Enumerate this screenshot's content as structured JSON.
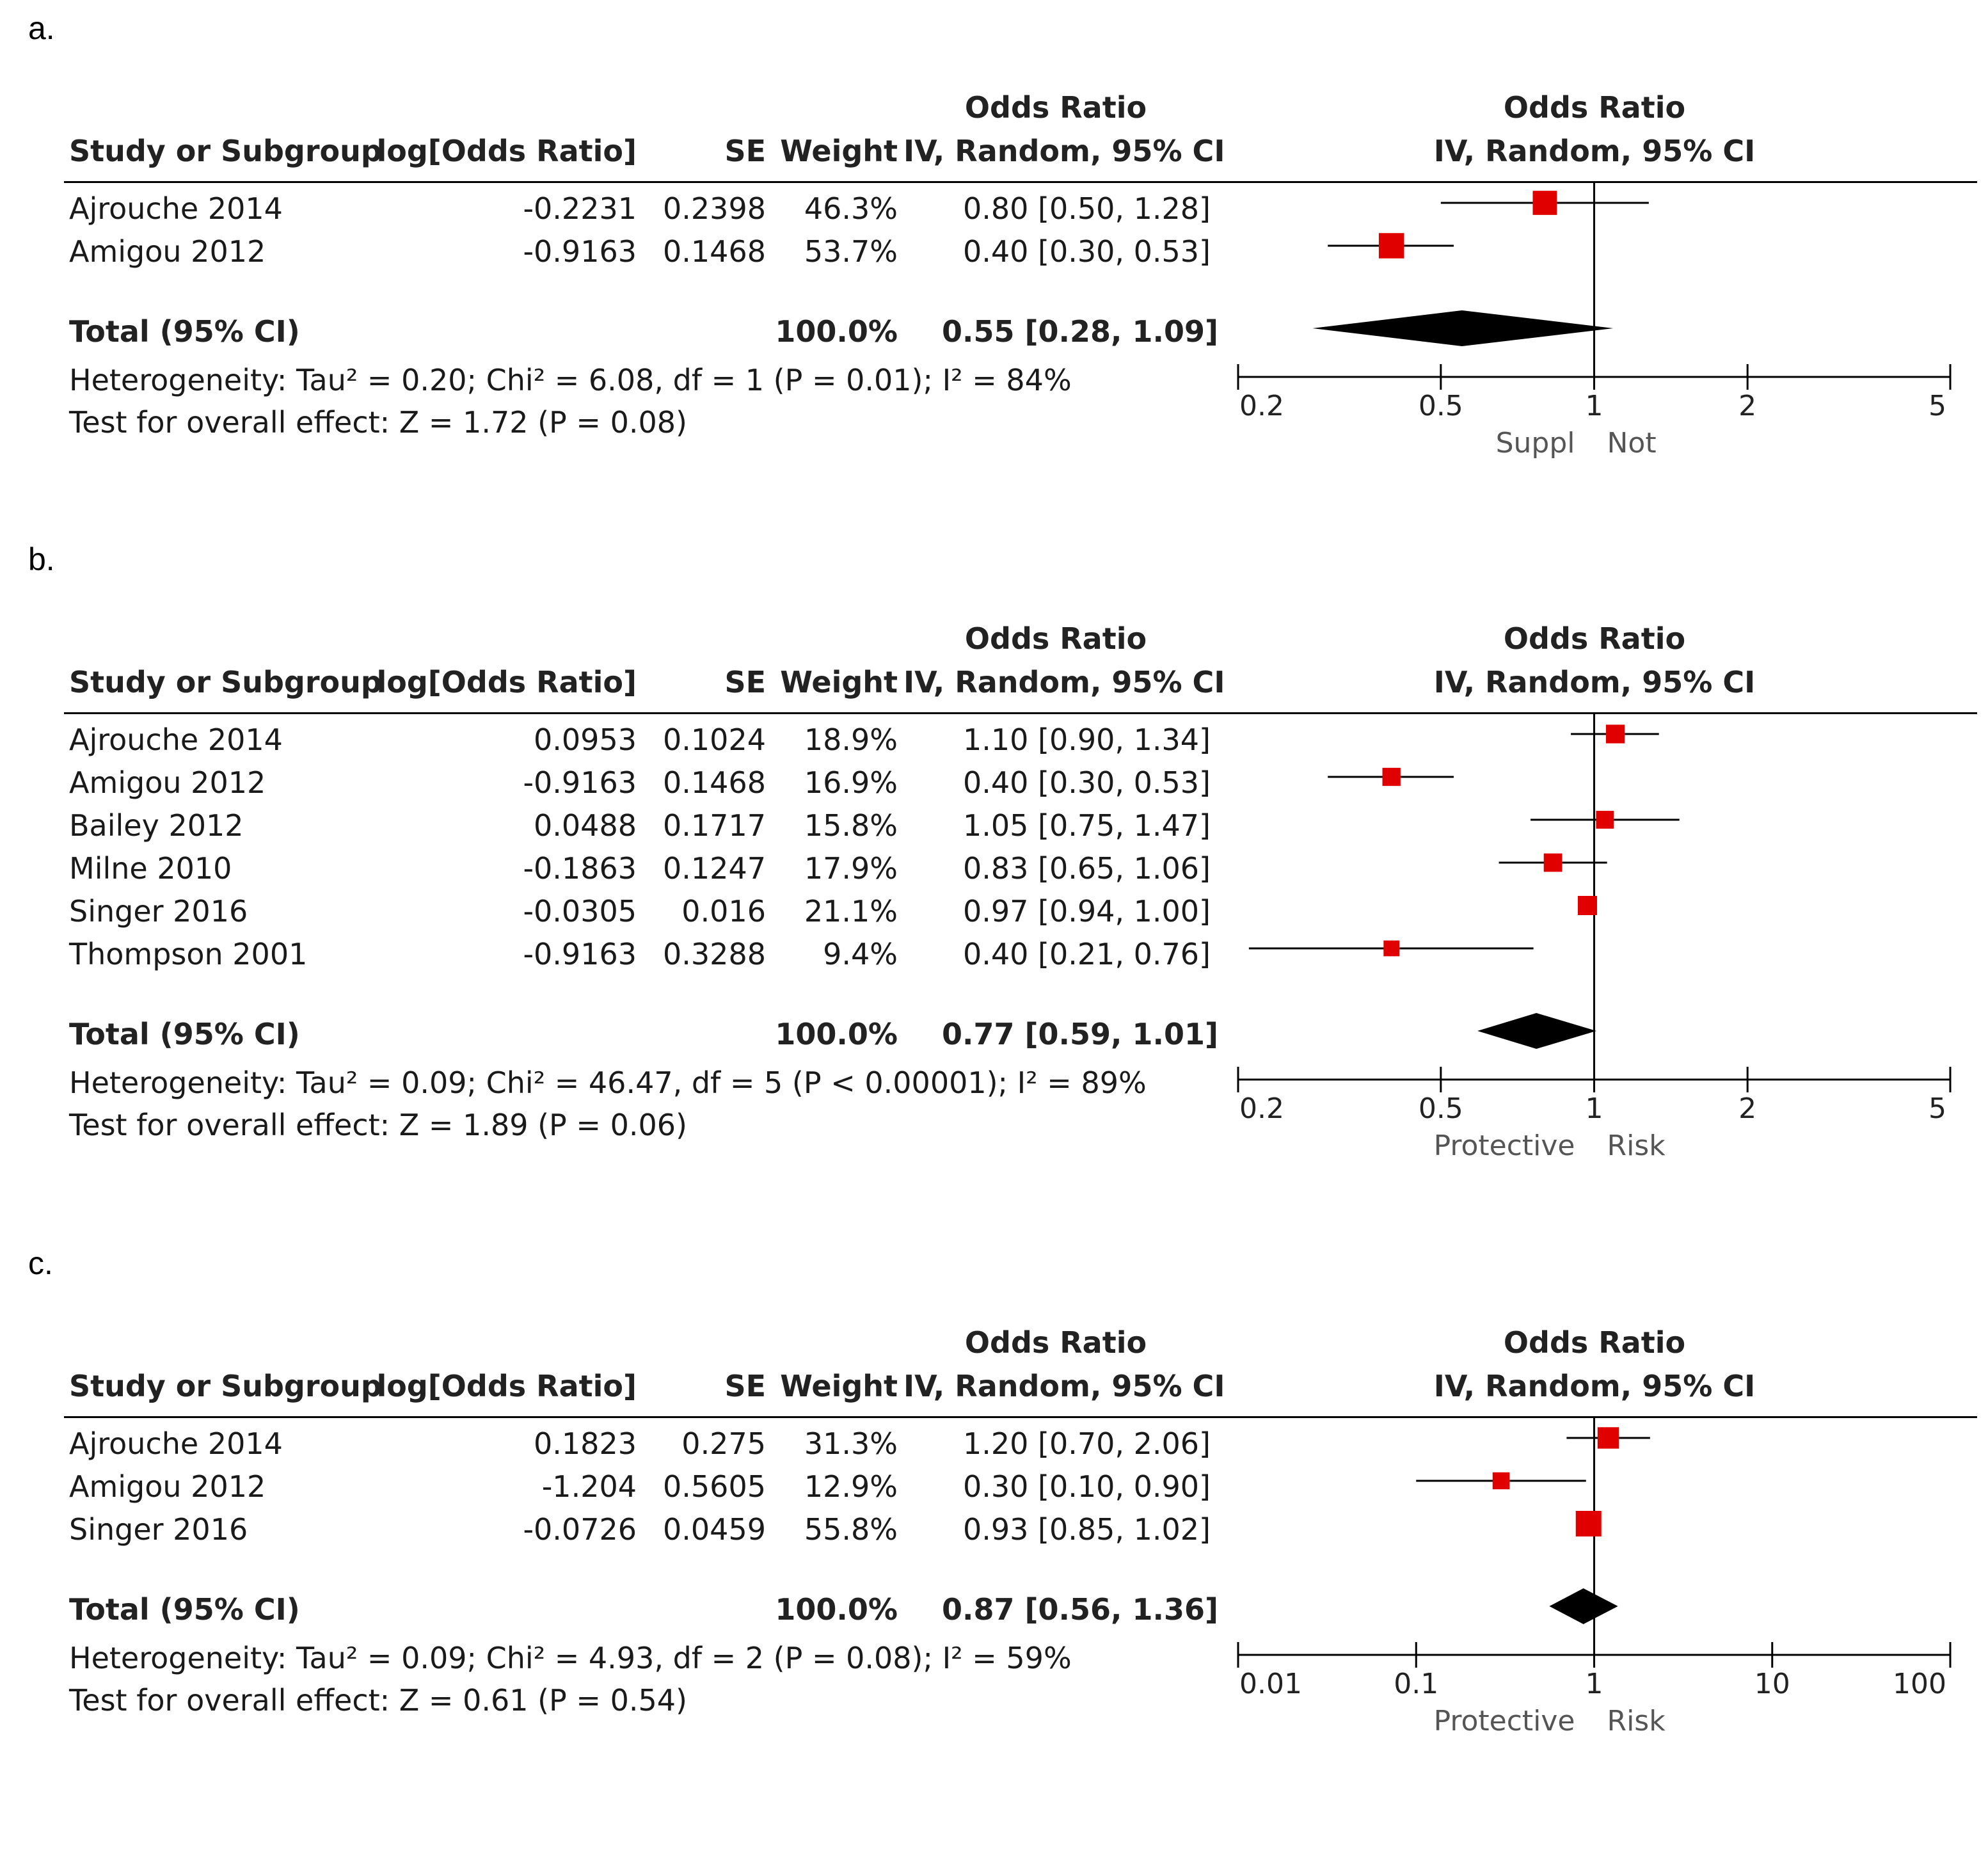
{
  "chart_data": [
    {
      "type": "forest",
      "panel_label": "a.",
      "columns": {
        "study": "Study or Subgroup",
        "log_or": "log[Odds Ratio]",
        "se": "SE",
        "weight": "Weight",
        "or_line1": "Odds Ratio",
        "or_line2": "IV, Random, 95% CI",
        "plot_line1": "Odds Ratio",
        "plot_line2": "IV, Random, 95% CI"
      },
      "studies": [
        {
          "name": "Ajrouche 2014",
          "log_or": "-0.2231",
          "se": "0.2398",
          "weight": "46.3%",
          "ci_text": "0.80 [0.50, 1.28]",
          "or": 0.8,
          "lo": 0.5,
          "hi": 1.28,
          "w": 46.3
        },
        {
          "name": "Amigou 2012",
          "log_or": "-0.9163",
          "se": "0.1468",
          "weight": "53.7%",
          "ci_text": "0.40 [0.30, 0.53]",
          "or": 0.4,
          "lo": 0.3,
          "hi": 0.53,
          "w": 53.7
        }
      ],
      "total": {
        "label": "Total (95% CI)",
        "weight": "100.0%",
        "ci_text": "0.55 [0.28, 1.09]",
        "or": 0.55,
        "lo": 0.28,
        "hi": 1.09
      },
      "heterogeneity": "Heterogeneity: Tau² = 0.20; Chi² = 6.08, df = 1 (P = 0.01); I² = 84%",
      "overall_effect": "Test for overall effect: Z = 1.72 (P = 0.08)",
      "axis": {
        "scale": "log",
        "min": 0.2,
        "max": 5,
        "ticks": [
          0.2,
          0.5,
          1,
          2,
          5
        ],
        "tick_labels": [
          "0.2",
          "0.5",
          "1",
          "2",
          "5"
        ]
      },
      "direction_labels": [
        "Suppl",
        "Not"
      ]
    },
    {
      "type": "forest",
      "panel_label": "b.",
      "columns": {
        "study": "Study or Subgroup",
        "log_or": "log[Odds Ratio]",
        "se": "SE",
        "weight": "Weight",
        "or_line1": "Odds Ratio",
        "or_line2": "IV, Random, 95% CI",
        "plot_line1": "Odds Ratio",
        "plot_line2": "IV, Random, 95% CI"
      },
      "studies": [
        {
          "name": "Ajrouche 2014",
          "log_or": "0.0953",
          "se": "0.1024",
          "weight": "18.9%",
          "ci_text": "1.10 [0.90, 1.34]",
          "or": 1.1,
          "lo": 0.9,
          "hi": 1.34,
          "w": 18.9
        },
        {
          "name": "Amigou 2012",
          "log_or": "-0.9163",
          "se": "0.1468",
          "weight": "16.9%",
          "ci_text": "0.40 [0.30, 0.53]",
          "or": 0.4,
          "lo": 0.3,
          "hi": 0.53,
          "w": 16.9
        },
        {
          "name": "Bailey 2012",
          "log_or": "0.0488",
          "se": "0.1717",
          "weight": "15.8%",
          "ci_text": "1.05 [0.75, 1.47]",
          "or": 1.05,
          "lo": 0.75,
          "hi": 1.47,
          "w": 15.8
        },
        {
          "name": "Milne 2010",
          "log_or": "-0.1863",
          "se": "0.1247",
          "weight": "17.9%",
          "ci_text": "0.83 [0.65, 1.06]",
          "or": 0.83,
          "lo": 0.65,
          "hi": 1.06,
          "w": 17.9
        },
        {
          "name": "Singer 2016",
          "log_or": "-0.0305",
          "se": "0.016",
          "weight": "21.1%",
          "ci_text": "0.97 [0.94, 1.00]",
          "or": 0.97,
          "lo": 0.94,
          "hi": 1.0,
          "w": 21.1
        },
        {
          "name": "Thompson 2001",
          "log_or": "-0.9163",
          "se": "0.3288",
          "weight": "9.4%",
          "ci_text": "0.40 [0.21, 0.76]",
          "or": 0.4,
          "lo": 0.21,
          "hi": 0.76,
          "w": 9.4
        }
      ],
      "total": {
        "label": "Total (95% CI)",
        "weight": "100.0%",
        "ci_text": "0.77 [0.59, 1.01]",
        "or": 0.77,
        "lo": 0.59,
        "hi": 1.01
      },
      "heterogeneity": "Heterogeneity: Tau² = 0.09; Chi² = 46.47, df = 5 (P < 0.00001); I² = 89%",
      "overall_effect": "Test for overall effect: Z = 1.89 (P = 0.06)",
      "axis": {
        "scale": "log",
        "min": 0.2,
        "max": 5,
        "ticks": [
          0.2,
          0.5,
          1,
          2,
          5
        ],
        "tick_labels": [
          "0.2",
          "0.5",
          "1",
          "2",
          "5"
        ]
      },
      "direction_labels": [
        "Protective",
        "Risk"
      ]
    },
    {
      "type": "forest",
      "panel_label": "c.",
      "columns": {
        "study": "Study or Subgroup",
        "log_or": "log[Odds Ratio]",
        "se": "SE",
        "weight": "Weight",
        "or_line1": "Odds Ratio",
        "or_line2": "IV, Random, 95% CI",
        "plot_line1": "Odds Ratio",
        "plot_line2": "IV, Random, 95% CI"
      },
      "studies": [
        {
          "name": "Ajrouche 2014",
          "log_or": "0.1823",
          "se": "0.275",
          "weight": "31.3%",
          "ci_text": "1.20 [0.70, 2.06]",
          "or": 1.2,
          "lo": 0.7,
          "hi": 2.06,
          "w": 31.3
        },
        {
          "name": "Amigou 2012",
          "log_or": "-1.204",
          "se": "0.5605",
          "weight": "12.9%",
          "ci_text": "0.30 [0.10, 0.90]",
          "or": 0.3,
          "lo": 0.1,
          "hi": 0.9,
          "w": 12.9
        },
        {
          "name": "Singer 2016",
          "log_or": "-0.0726",
          "se": "0.0459",
          "weight": "55.8%",
          "ci_text": "0.93 [0.85, 1.02]",
          "or": 0.93,
          "lo": 0.85,
          "hi": 1.02,
          "w": 55.8
        }
      ],
      "total": {
        "label": "Total (95% CI)",
        "weight": "100.0%",
        "ci_text": "0.87 [0.56, 1.36]",
        "or": 0.87,
        "lo": 0.56,
        "hi": 1.36
      },
      "heterogeneity": "Heterogeneity: Tau² = 0.09; Chi² = 4.93, df = 2 (P = 0.08); I² = 59%",
      "overall_effect": "Test for overall effect: Z = 0.61 (P = 0.54)",
      "axis": {
        "scale": "log",
        "min": 0.01,
        "max": 100,
        "ticks": [
          0.01,
          0.1,
          1,
          10,
          100
        ],
        "tick_labels": [
          "0.01",
          "0.1",
          "1",
          "10",
          "100"
        ]
      },
      "direction_labels": [
        "Protective",
        "Risk"
      ]
    }
  ],
  "colors": {
    "marker": "#e00000",
    "diamond": "#000000",
    "text": "#1a1a1a"
  }
}
